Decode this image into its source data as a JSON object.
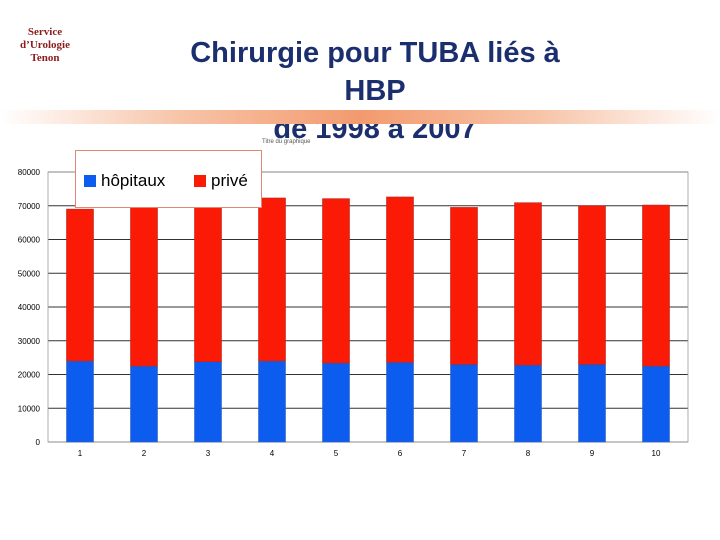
{
  "header": {
    "logo_lines": [
      "Service",
      "d’Urologie",
      "Tenon"
    ],
    "title_lines": [
      "Chirurgie pour TUBA liés à",
      "HBP",
      "de 1998 à 2007"
    ]
  },
  "chart_data": {
    "type": "bar",
    "stacked": true,
    "title": "",
    "tiny_label": "Titre du graphique",
    "ylabel": "",
    "xlabel": "",
    "categories": [
      "1",
      "2",
      "3",
      "4",
      "5",
      "6",
      "7",
      "8",
      "9",
      "10"
    ],
    "ylim": [
      0,
      80000
    ],
    "yticks": [
      0,
      10000,
      20000,
      30000,
      40000,
      50000,
      60000,
      70000,
      80000
    ],
    "grid": true,
    "legend_position": "top-left",
    "series": [
      {
        "name": "hôpitaux",
        "color": "#0d5cf0",
        "values": [
          24000,
          22500,
          23800,
          24000,
          23400,
          23600,
          23000,
          22800,
          23000,
          22500
        ]
      },
      {
        "name": "privé",
        "color": "#fb1a06",
        "values": [
          45000,
          47500,
          48500,
          48300,
          48700,
          49000,
          46500,
          48100,
          47000,
          47700
        ]
      }
    ]
  }
}
